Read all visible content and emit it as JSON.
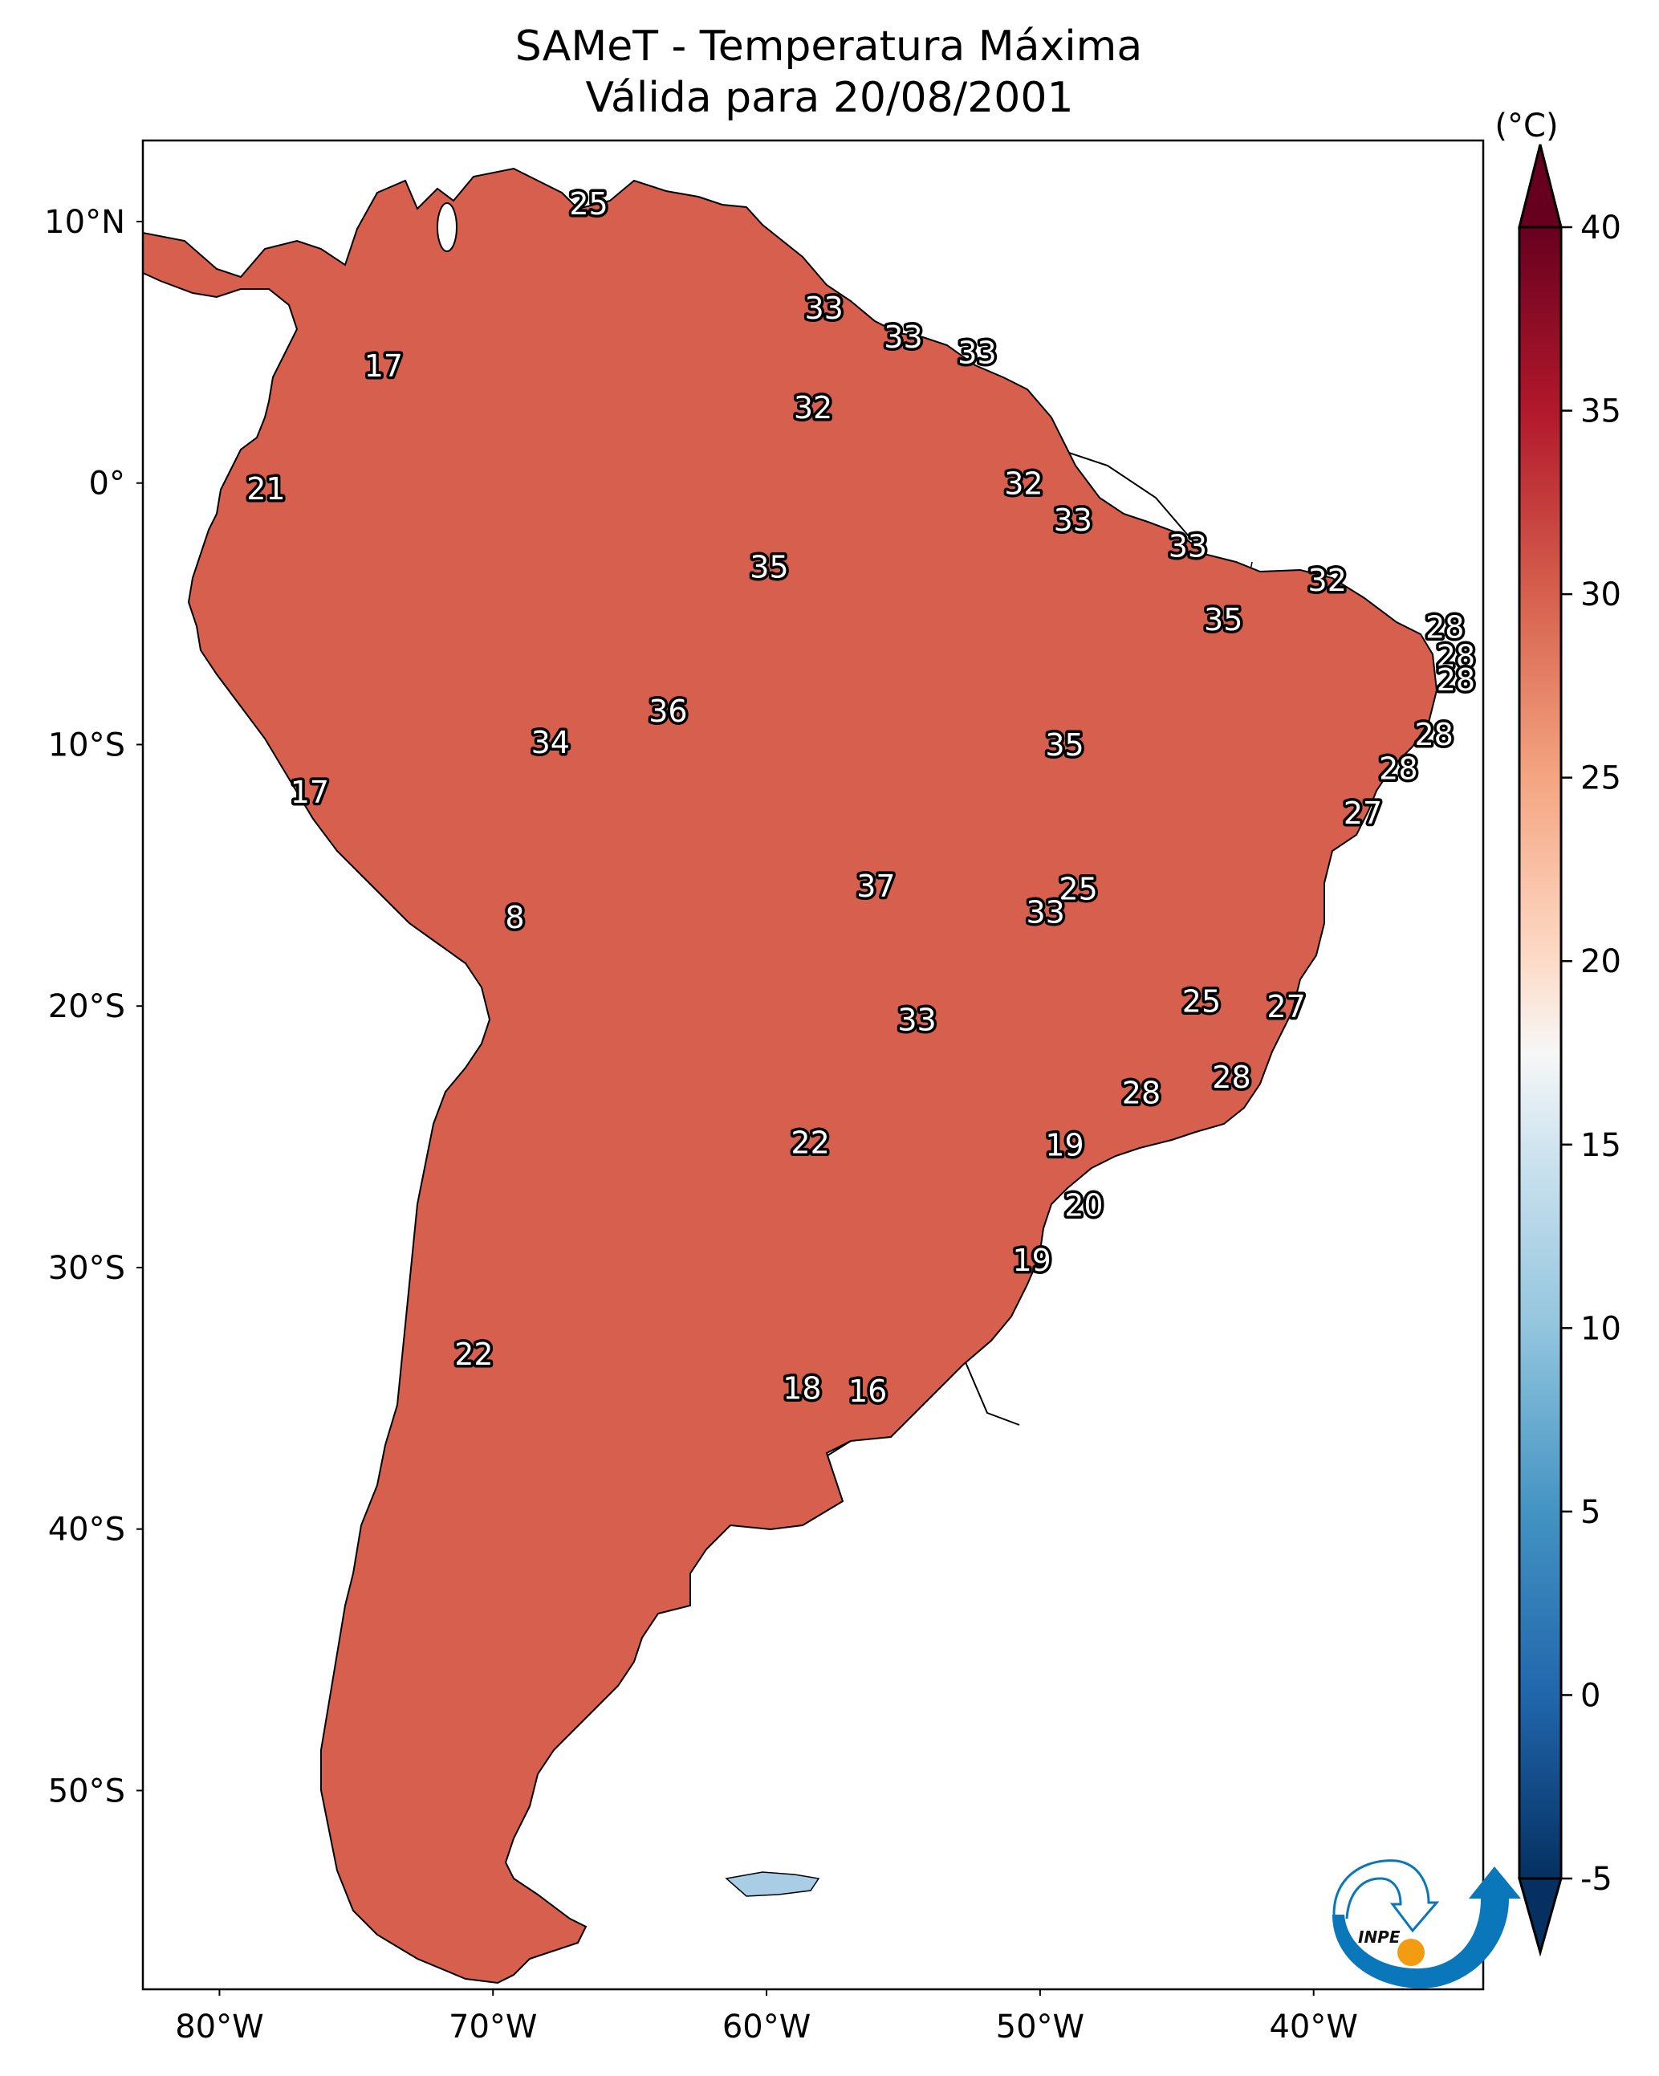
{
  "chart_data": {
    "type": "heatmap",
    "title": "SAMeT - Temperatura Máxima",
    "subtitle": "Válida para 20/08/2001",
    "variable": "Temperatura Máxima",
    "units_label": "(°C)",
    "region": "South America",
    "xlabel": "",
    "ylabel": "",
    "xlim": [
      -82.8,
      -33.8
    ],
    "ylim": [
      -57.6,
      13.1
    ],
    "x_ticks": [
      {
        "value": -80,
        "label": "80°W"
      },
      {
        "value": -70,
        "label": "70°W"
      },
      {
        "value": -60,
        "label": "60°W"
      },
      {
        "value": -50,
        "label": "50°W"
      },
      {
        "value": -40,
        "label": "40°W"
      }
    ],
    "y_ticks": [
      {
        "value": 10,
        "label": "10°N"
      },
      {
        "value": 0,
        "label": "0°"
      },
      {
        "value": -10,
        "label": "10°S"
      },
      {
        "value": -20,
        "label": "20°S"
      },
      {
        "value": -30,
        "label": "30°S"
      },
      {
        "value": -40,
        "label": "40°S"
      },
      {
        "value": -50,
        "label": "50°S"
      }
    ],
    "grid": false,
    "colorbar": {
      "colormap": "RdBu_r",
      "range": [
        -5,
        40
      ],
      "extend": "both",
      "ticks": [
        {
          "value": 40,
          "label": "40"
        },
        {
          "value": 35,
          "label": "35"
        },
        {
          "value": 30,
          "label": "30"
        },
        {
          "value": 25,
          "label": "25"
        },
        {
          "value": 20,
          "label": "20"
        },
        {
          "value": 15,
          "label": "15"
        },
        {
          "value": 10,
          "label": "10"
        },
        {
          "value": 5,
          "label": "5"
        },
        {
          "value": 0,
          "label": "0"
        },
        {
          "value": -5,
          "label": "-5"
        }
      ],
      "placement": "right",
      "stops": [
        {
          "value": -5,
          "color": "#053061"
        },
        {
          "value": 0,
          "color": "#2166ac"
        },
        {
          "value": 5,
          "color": "#4393c3"
        },
        {
          "value": 10,
          "color": "#92c5de"
        },
        {
          "value": 15,
          "color": "#d1e5f0"
        },
        {
          "value": 17.5,
          "color": "#f7f7f7"
        },
        {
          "value": 20,
          "color": "#fddbc7"
        },
        {
          "value": 25,
          "color": "#f4a582"
        },
        {
          "value": 30,
          "color": "#d6604d"
        },
        {
          "value": 35,
          "color": "#b2182b"
        },
        {
          "value": 40,
          "color": "#67001f"
        }
      ]
    },
    "annotations": [
      {
        "lon": -66.5,
        "lat": 10.6,
        "value": 25
      },
      {
        "lon": -74.0,
        "lat": 4.4,
        "value": 17
      },
      {
        "lon": -57.9,
        "lat": 6.6,
        "value": 33
      },
      {
        "lon": -55.0,
        "lat": 5.5,
        "value": 33
      },
      {
        "lon": -52.3,
        "lat": 4.9,
        "value": 33
      },
      {
        "lon": -58.3,
        "lat": 2.8,
        "value": 32
      },
      {
        "lon": -78.3,
        "lat": -0.3,
        "value": 21
      },
      {
        "lon": -50.6,
        "lat": -0.1,
        "value": 32
      },
      {
        "lon": -48.8,
        "lat": -1.5,
        "value": 33
      },
      {
        "lon": -44.6,
        "lat": -2.5,
        "value": 33
      },
      {
        "lon": -59.9,
        "lat": -3.3,
        "value": 35
      },
      {
        "lon": -39.5,
        "lat": -3.8,
        "value": 32
      },
      {
        "lon": -43.3,
        "lat": -5.3,
        "value": 35
      },
      {
        "lon": -35.2,
        "lat": -5.6,
        "value": 28
      },
      {
        "lon": -34.8,
        "lat": -6.7,
        "value": 28
      },
      {
        "lon": -34.8,
        "lat": -7.6,
        "value": 28
      },
      {
        "lon": -63.6,
        "lat": -8.8,
        "value": 36
      },
      {
        "lon": -35.6,
        "lat": -9.7,
        "value": 28
      },
      {
        "lon": -67.9,
        "lat": -10.0,
        "value": 34
      },
      {
        "lon": -49.1,
        "lat": -10.1,
        "value": 35
      },
      {
        "lon": -36.9,
        "lat": -11.0,
        "value": 28
      },
      {
        "lon": -76.7,
        "lat": -11.9,
        "value": 17
      },
      {
        "lon": -38.2,
        "lat": -12.7,
        "value": 27
      },
      {
        "lon": -56.0,
        "lat": -15.5,
        "value": 37
      },
      {
        "lon": -48.6,
        "lat": -15.6,
        "value": 25
      },
      {
        "lon": -49.8,
        "lat": -16.5,
        "value": 33
      },
      {
        "lon": -69.2,
        "lat": -16.7,
        "value": 8
      },
      {
        "lon": -44.1,
        "lat": -19.9,
        "value": 25
      },
      {
        "lon": -41.0,
        "lat": -20.1,
        "value": 27
      },
      {
        "lon": -54.5,
        "lat": -20.6,
        "value": 33
      },
      {
        "lon": -43.0,
        "lat": -22.8,
        "value": 28
      },
      {
        "lon": -46.3,
        "lat": -23.4,
        "value": 28
      },
      {
        "lon": -58.4,
        "lat": -25.3,
        "value": 22
      },
      {
        "lon": -49.1,
        "lat": -25.4,
        "value": 19
      },
      {
        "lon": -48.4,
        "lat": -27.7,
        "value": 20
      },
      {
        "lon": -50.3,
        "lat": -29.8,
        "value": 19
      },
      {
        "lon": -70.7,
        "lat": -33.4,
        "value": 22
      },
      {
        "lon": -58.7,
        "lat": -34.7,
        "value": 18
      },
      {
        "lon": -56.3,
        "lat": -34.8,
        "value": 16
      }
    ]
  },
  "logo": {
    "text": "INPE",
    "colors": {
      "blue": "#0a77ba",
      "orange": "#f39c12"
    }
  }
}
